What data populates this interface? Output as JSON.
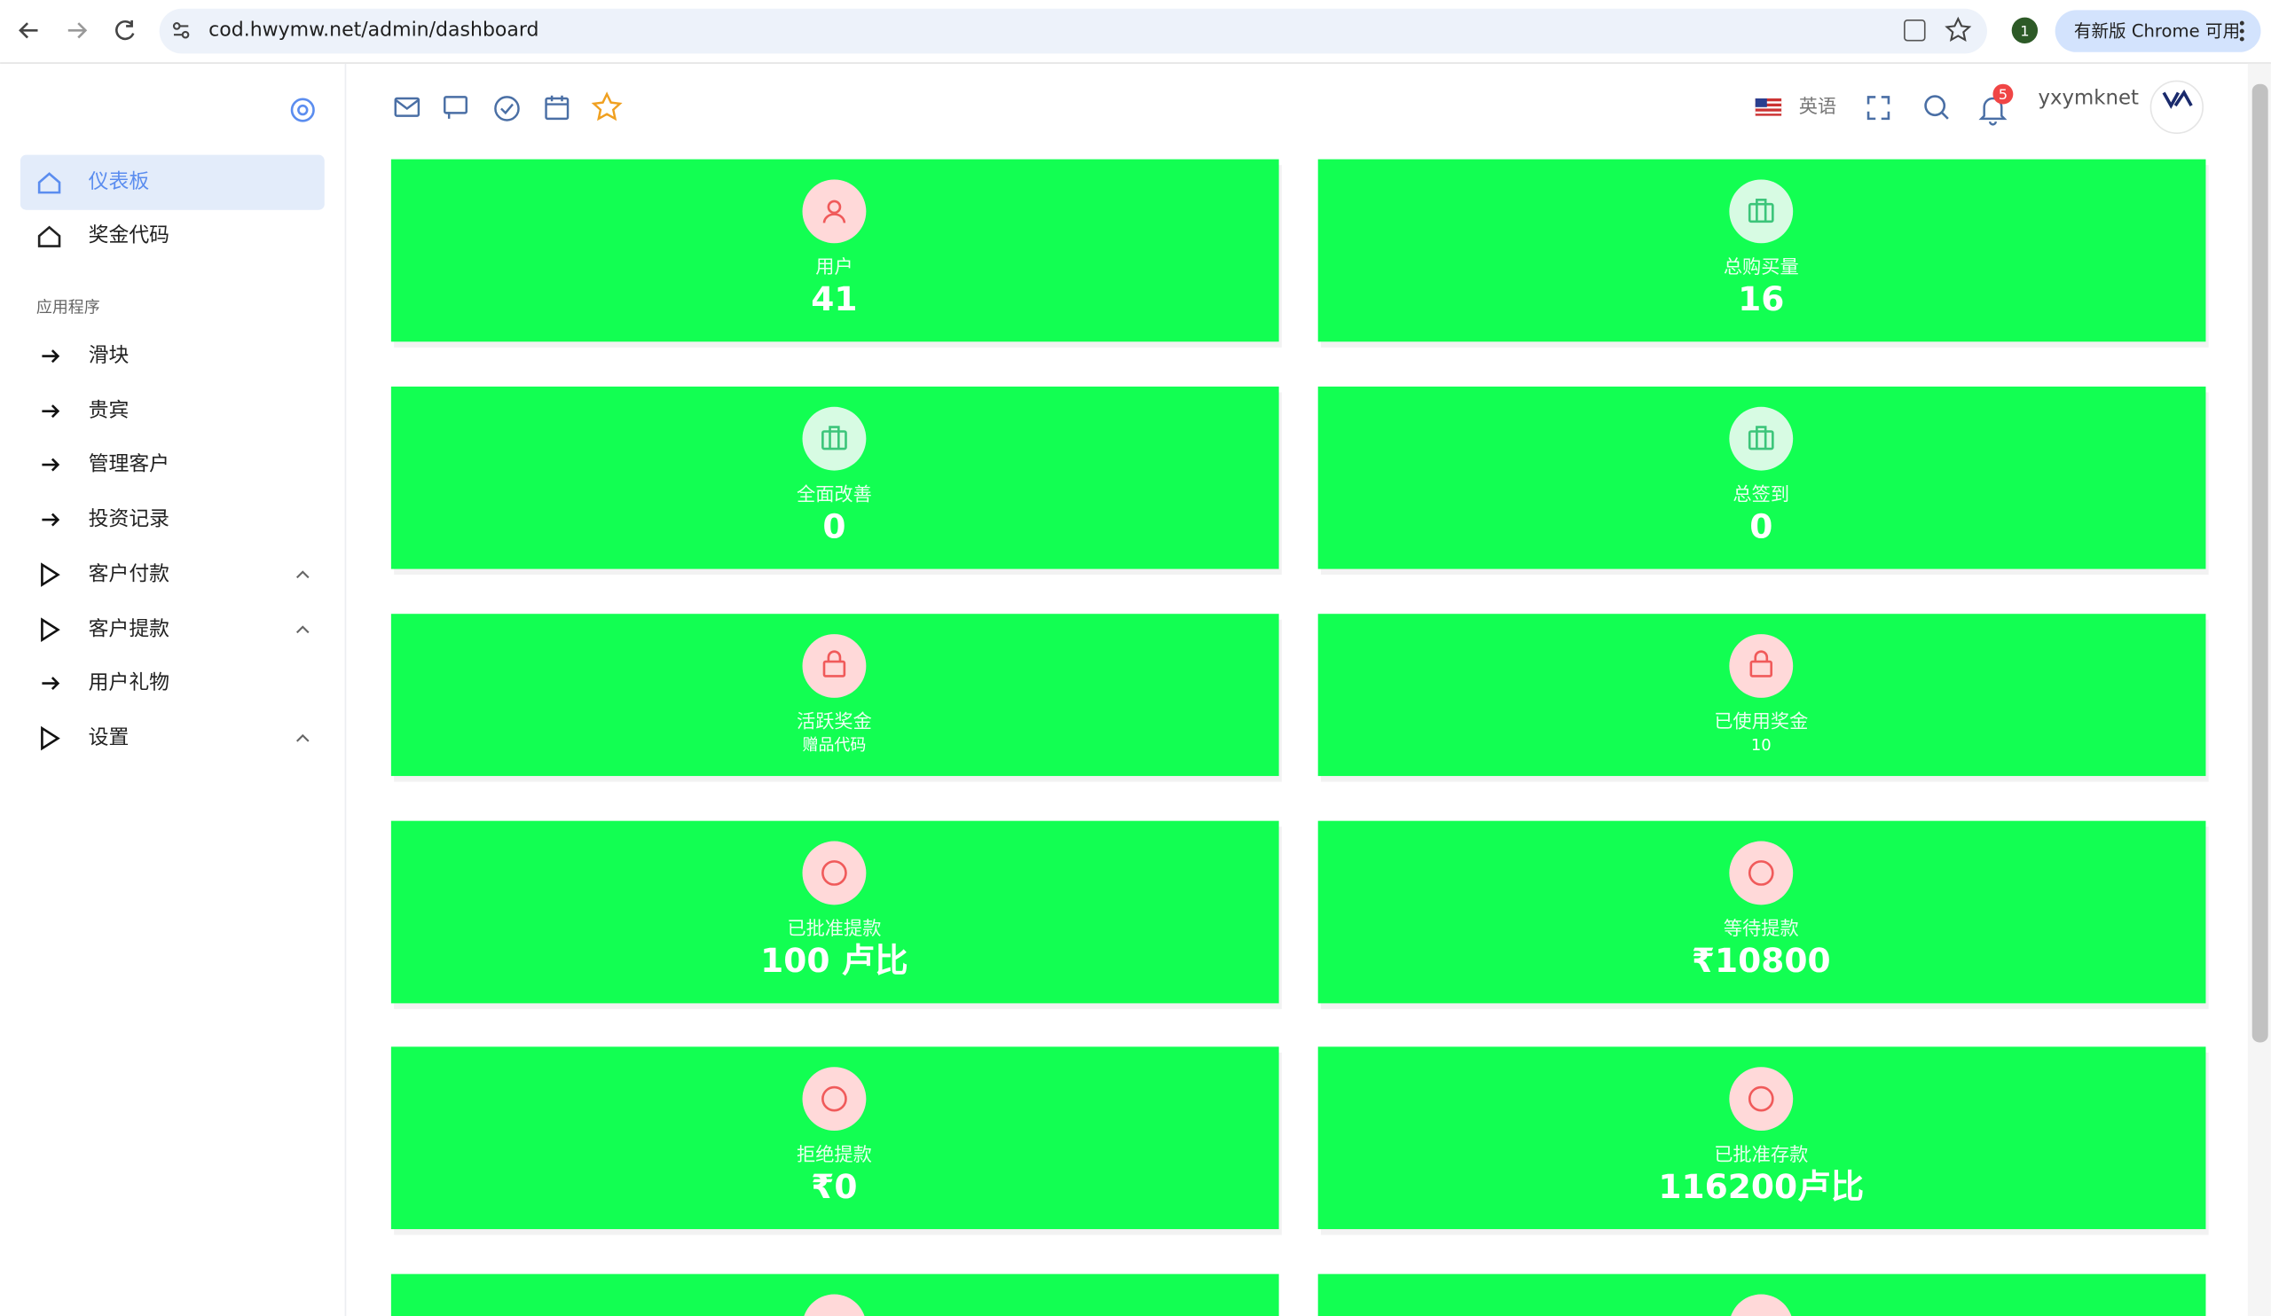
{
  "browser": {
    "url": "cod.hwymw.net/admin/dashboard",
    "profile": "1",
    "update": "有新版 Chrome 可用"
  },
  "sidebar": {
    "items": [
      "仪表板",
      "奖金代码"
    ],
    "section": "应用程序",
    "app_items": [
      "滑块",
      "贵宾",
      "管理客户",
      "投资记录",
      "客户付款",
      "客户提款",
      "用户礼物",
      "设置"
    ]
  },
  "topbar": {
    "language": "英语",
    "notifications": "5",
    "username": "yxymknet"
  },
  "cards": [
    {
      "label": "用户",
      "value": "41"
    },
    {
      "label": "总购买量",
      "value": "16"
    },
    {
      "label": "全面改善",
      "value": "0"
    },
    {
      "label": "总签到",
      "value": "0"
    },
    {
      "label": "活跃奖金",
      "value": "赠品代码"
    },
    {
      "label": "已使用奖金",
      "value": "10"
    },
    {
      "label": "已批准提款",
      "value": "100 卢比"
    },
    {
      "label": "等待提款",
      "value": "₹10800"
    },
    {
      "label": "拒绝提款",
      "value": "₹0"
    },
    {
      "label": "已批准存款",
      "value": "116200卢比"
    }
  ]
}
